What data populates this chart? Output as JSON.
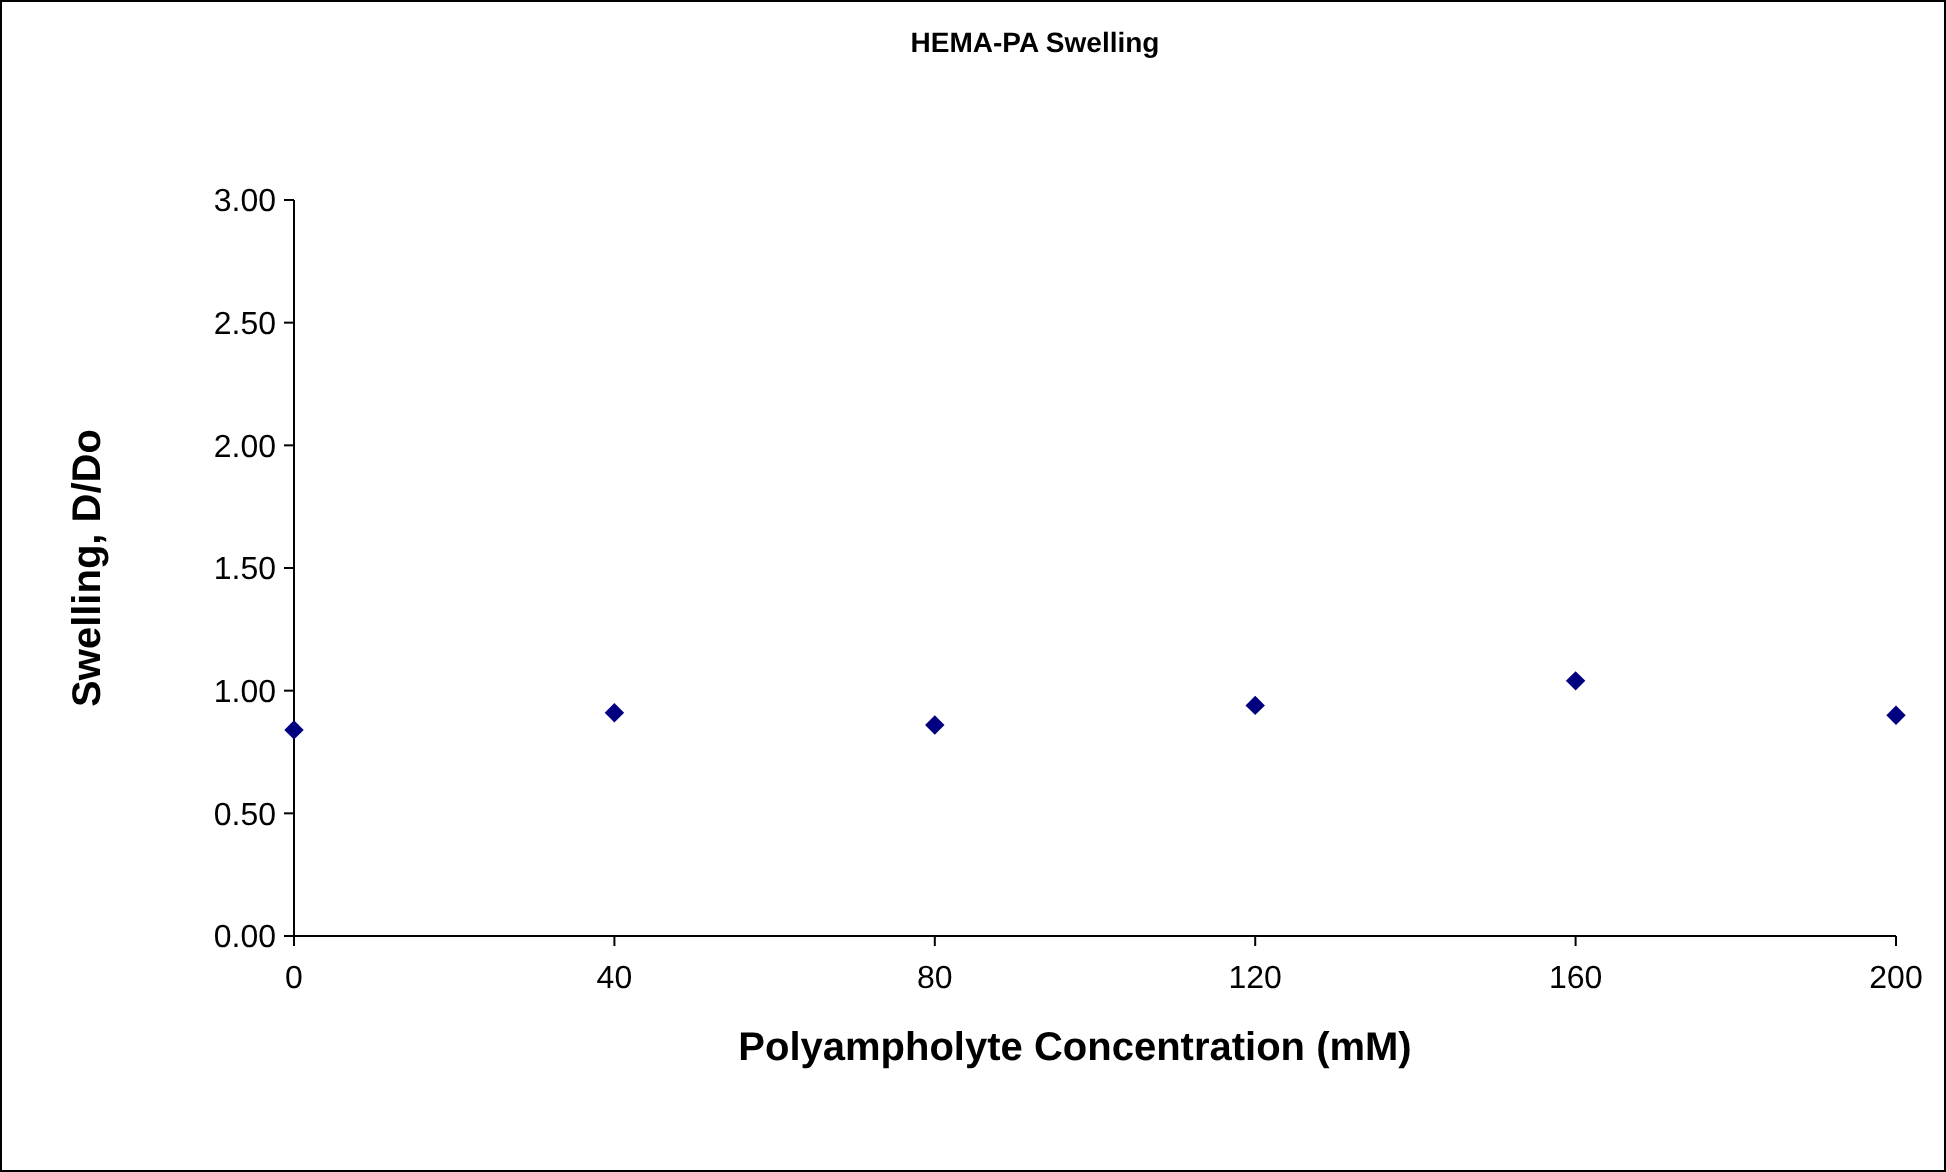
{
  "chart_data": {
    "type": "scatter",
    "title": "HEMA-PA Swelling",
    "xlabel": "Polyampholyte Concentration (mM)",
    "ylabel": "Swelling, D/Do",
    "x": [
      0,
      40,
      80,
      120,
      160,
      200
    ],
    "series": [
      {
        "color": "#000080",
        "values": [
          0.84,
          0.91,
          0.86,
          0.94,
          1.04,
          0.9
        ]
      }
    ],
    "xlim": [
      0,
      200
    ],
    "xticks": [
      0,
      40,
      80,
      120,
      160,
      200
    ],
    "ylim": [
      0,
      3
    ],
    "yticks": [
      {
        "value": 0,
        "label": "0.00"
      },
      {
        "value": 0.5,
        "label": "0.50"
      },
      {
        "value": 1,
        "label": "1.00"
      },
      {
        "value": 1.5,
        "label": "1.50"
      },
      {
        "value": 2,
        "label": "2.00"
      },
      {
        "value": 2.5,
        "label": "2.50"
      },
      {
        "value": 3,
        "label": "3.00"
      }
    ],
    "marker": "diamond",
    "grid": false
  }
}
